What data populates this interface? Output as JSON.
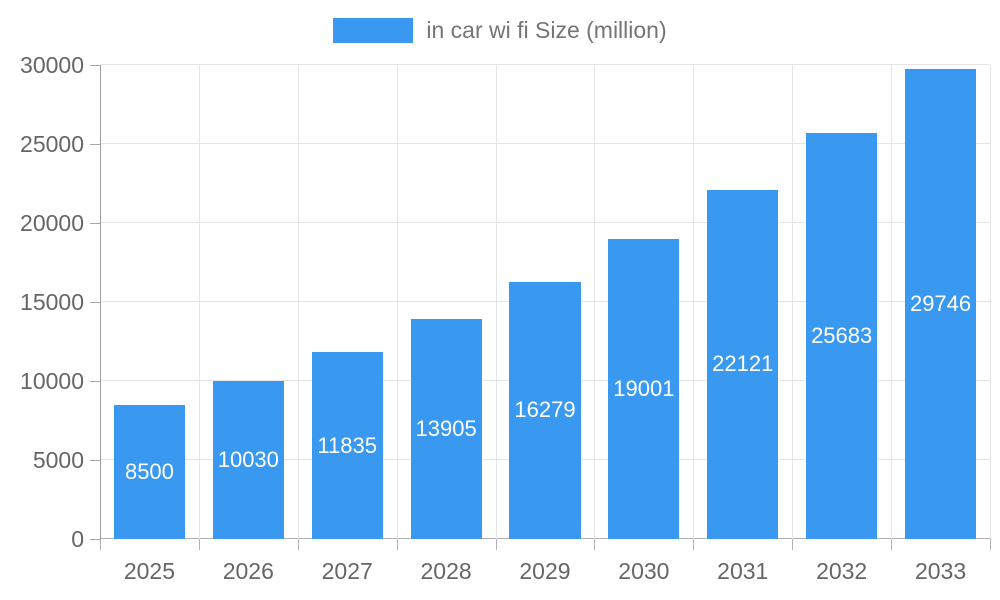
{
  "chart_data": {
    "type": "bar",
    "title": "",
    "xlabel": "",
    "ylabel": "",
    "legend": {
      "position": "top-center",
      "label": "in car wi fi Size (million)"
    },
    "categories": [
      "2025",
      "2026",
      "2027",
      "2028",
      "2029",
      "2030",
      "2031",
      "2032",
      "2033"
    ],
    "series": [
      {
        "name": "in car wi fi Size (million)",
        "values": [
          8500,
          10030,
          11835,
          13905,
          16279,
          19001,
          22121,
          25683,
          29746
        ]
      }
    ],
    "ylim": [
      0,
      30000
    ],
    "yticks": [
      0,
      5000,
      10000,
      15000,
      20000,
      25000,
      30000
    ],
    "grid": true,
    "value_labels_position": "inside-center",
    "colors": {
      "bar": "#3999F0",
      "value_label": "#ffffff",
      "axis_label": "#666666",
      "legend_text": "#757575",
      "gridline": "#e5e5e5",
      "y_axis_line": "#9e9e9e",
      "x_axis_line": "#b2b2b2"
    }
  }
}
